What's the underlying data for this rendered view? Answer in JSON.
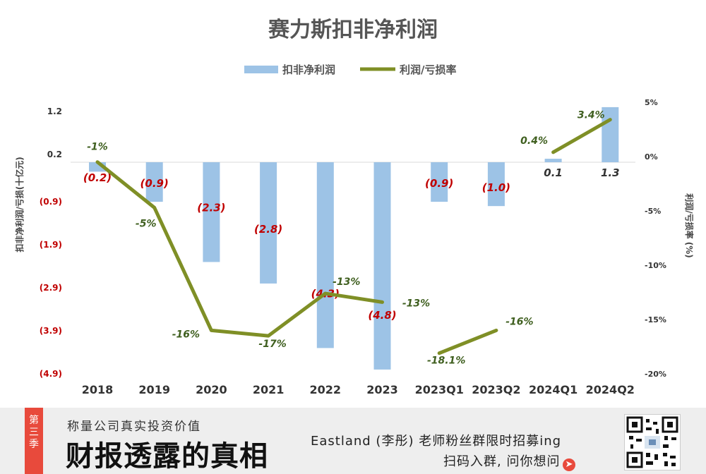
{
  "chart_data": {
    "type": "bar+line",
    "title": "赛力斯扣非净利润",
    "categories": [
      "2018",
      "2019",
      "2020",
      "2021",
      "2022",
      "2023",
      "2023Q1",
      "2023Q2",
      "2024Q1",
      "2024Q2"
    ],
    "left_axis": {
      "label": "扣非净利润/亏损(十亿元)",
      "ticks": [
        1.2,
        0.2,
        -0.9,
        -1.9,
        -2.9,
        -3.9,
        -4.9
      ],
      "tick_labels": [
        "1.2",
        "0.2",
        "(0.9)",
        "(1.9)",
        "(2.9)",
        "(3.9)",
        "(4.9)"
      ],
      "ylim": [
        -4.9,
        1.2
      ]
    },
    "right_axis": {
      "label": "利润/亏损率 (%)",
      "ticks": [
        5,
        0,
        -5,
        -10,
        -15,
        -20
      ],
      "tick_labels": [
        "5%",
        "0%",
        "-5%",
        "-10%",
        "-15%",
        "-20%"
      ],
      "ylim": [
        -20,
        5
      ]
    },
    "series": [
      {
        "name": "扣非净利润",
        "type": "bar",
        "axis": "left",
        "color": "#9dc3e6",
        "values": [
          -0.2,
          -0.9,
          -2.3,
          -2.8,
          -4.3,
          -4.8,
          -0.9,
          -1.0,
          0.1,
          1.3
        ],
        "data_labels": [
          "(0.2)",
          "(0.9)",
          "(2.3)",
          "(2.8)",
          "(4.3)",
          "(4.8)",
          "(0.9)",
          "(1.0)",
          "0.1",
          "1.3"
        ]
      },
      {
        "name": "利润/亏损率",
        "type": "line",
        "axis": "right",
        "color": "#7f8f26",
        "segments": [
          [
            {
              "category": "2018",
              "value": -0.5,
              "label": "-1%"
            },
            {
              "category": "2019",
              "value": -4.7,
              "label": "-5%"
            },
            {
              "category": "2020",
              "value": -16,
              "label": "-16%"
            },
            {
              "category": "2021",
              "value": -16.5,
              "label": "-17%"
            },
            {
              "category": "2022",
              "value": -12.6,
              "label": "-13%"
            },
            {
              "category": "2023",
              "value": -13.4,
              "label": "-13%"
            }
          ],
          [
            {
              "category": "2023Q1",
              "value": -18.1,
              "label": "-18.1%"
            },
            {
              "category": "2023Q2",
              "value": -16,
              "label": "-16%"
            }
          ],
          [
            {
              "category": "2024Q1",
              "value": 0.4,
              "label": "0.4%"
            },
            {
              "category": "2024Q2",
              "value": 3.4,
              "label": "3.4%"
            }
          ]
        ]
      }
    ],
    "legend_position": "top-center",
    "colors": {
      "negative_label": "#c00000",
      "positive_label": "#333333",
      "line_label": "#3f5f1f"
    }
  },
  "banner": {
    "season_label": "第三季",
    "sub_title": "称量公司真实投资价值",
    "main_title": "财报透露的真相",
    "promo_text": "Eastland (李彤) 老师粉丝群限时招募ing",
    "cta_text": "扫码入群, 问你想问",
    "cta_icon": "arrow-right-circle-icon",
    "accent_color": "#e84a3c"
  }
}
